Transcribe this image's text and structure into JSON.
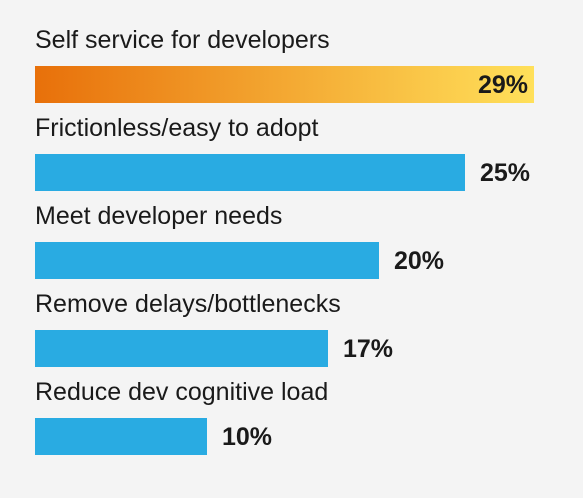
{
  "chart_data": {
    "type": "bar",
    "orientation": "horizontal",
    "categories": [
      "Self service for developers",
      "Frictionless/easy to adopt",
      "Meet developer needs",
      "Remove delays/bottlenecks",
      "Reduce dev cognitive load"
    ],
    "values": [
      29,
      25,
      20,
      17,
      10
    ],
    "value_labels": [
      "29%",
      "25%",
      "20%",
      "17%",
      "10%"
    ],
    "unit": "%",
    "xlim": [
      0,
      29
    ],
    "grid": false,
    "legend": "none",
    "colors": {
      "highlight_gradient": [
        "#e8700a",
        "#ffe05a"
      ],
      "bar": "#29abe2",
      "text": "#1a1a1a",
      "background": "#f4f4f4"
    }
  }
}
